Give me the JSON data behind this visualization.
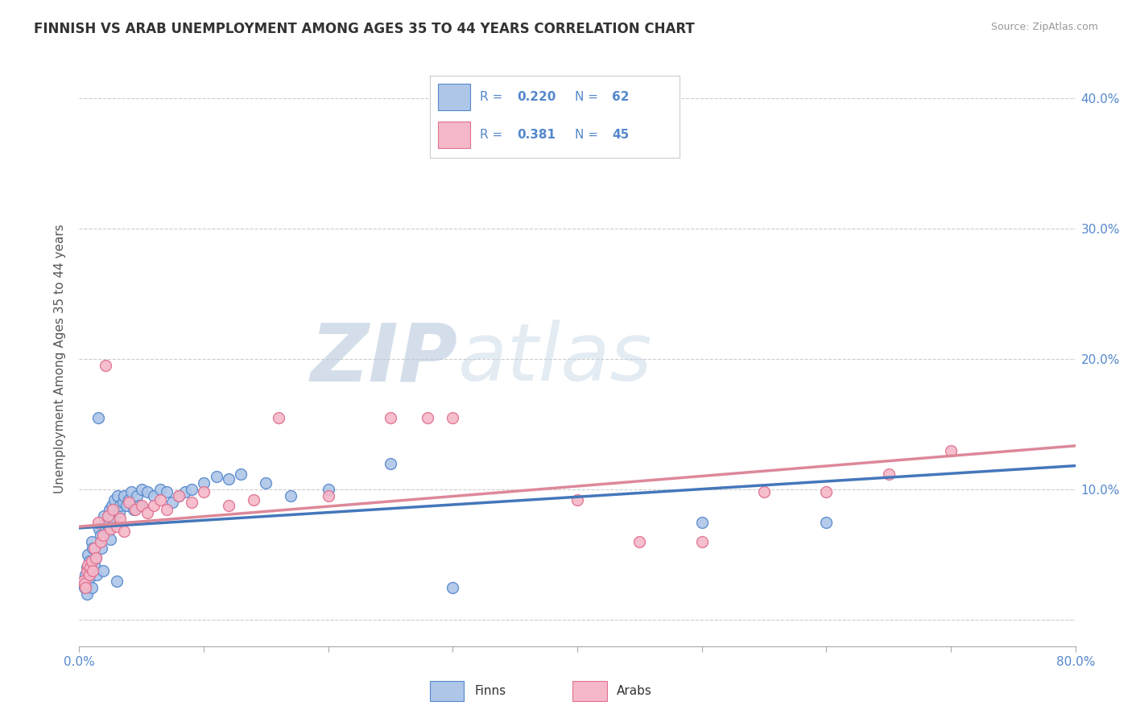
{
  "title": "FINNISH VS ARAB UNEMPLOYMENT AMONG AGES 35 TO 44 YEARS CORRELATION CHART",
  "source": "Source: ZipAtlas.com",
  "ylabel": "Unemployment Among Ages 35 to 44 years",
  "xlim": [
    0.0,
    0.8
  ],
  "ylim": [
    -0.02,
    0.42
  ],
  "xticks": [
    0.0,
    0.1,
    0.2,
    0.3,
    0.4,
    0.5,
    0.6,
    0.7,
    0.8
  ],
  "xtick_labels": [
    "0.0%",
    "",
    "",
    "",
    "",
    "",
    "",
    "",
    "80.0%"
  ],
  "yticks": [
    0.0,
    0.1,
    0.2,
    0.3,
    0.4
  ],
  "ytick_labels_right": [
    "",
    "10.0%",
    "20.0%",
    "30.0%",
    "40.0%"
  ],
  "finns_color": "#aec6e8",
  "arabs_color": "#f5b8c8",
  "finns_edge_color": "#5588cc",
  "arabs_edge_color": "#e07090",
  "trend_finns_color": "#4477bb",
  "trend_arabs_color": "#dd8899",
  "legend_R_finns": "0.220",
  "legend_N_finns": "62",
  "legend_R_arabs": "0.381",
  "legend_N_arabs": "45",
  "watermark": "ZIPatlas",
  "watermark_color": "#d0d8e8",
  "background_color": "#ffffff",
  "grid_color": "#cccccc",
  "tick_color": "#5588cc",
  "finns_x": [
    0.003,
    0.004,
    0.005,
    0.006,
    0.006,
    0.007,
    0.007,
    0.008,
    0.008,
    0.009,
    0.01,
    0.01,
    0.011,
    0.012,
    0.013,
    0.014,
    0.015,
    0.016,
    0.017,
    0.018,
    0.019,
    0.02,
    0.021,
    0.022,
    0.023,
    0.024,
    0.025,
    0.026,
    0.027,
    0.028,
    0.03,
    0.031,
    0.032,
    0.033,
    0.035,
    0.036,
    0.038,
    0.04,
    0.042,
    0.044,
    0.046,
    0.048,
    0.05,
    0.055,
    0.06,
    0.065,
    0.07,
    0.075,
    0.08,
    0.085,
    0.09,
    0.1,
    0.11,
    0.12,
    0.13,
    0.15,
    0.17,
    0.2,
    0.25,
    0.3,
    0.5,
    0.6
  ],
  "finns_y": [
    0.03,
    0.025,
    0.035,
    0.02,
    0.04,
    0.028,
    0.05,
    0.032,
    0.045,
    0.038,
    0.06,
    0.025,
    0.055,
    0.042,
    0.048,
    0.035,
    0.155,
    0.07,
    0.065,
    0.055,
    0.038,
    0.08,
    0.072,
    0.075,
    0.068,
    0.085,
    0.062,
    0.088,
    0.078,
    0.092,
    0.03,
    0.095,
    0.082,
    0.088,
    0.09,
    0.095,
    0.088,
    0.092,
    0.098,
    0.085,
    0.095,
    0.088,
    0.1,
    0.098,
    0.095,
    0.1,
    0.098,
    0.09,
    0.095,
    0.098,
    0.1,
    0.105,
    0.11,
    0.108,
    0.112,
    0.105,
    0.095,
    0.1,
    0.12,
    0.025,
    0.075,
    0.075
  ],
  "arabs_x": [
    0.003,
    0.004,
    0.005,
    0.006,
    0.007,
    0.008,
    0.009,
    0.01,
    0.011,
    0.012,
    0.013,
    0.015,
    0.017,
    0.019,
    0.021,
    0.023,
    0.025,
    0.027,
    0.03,
    0.033,
    0.036,
    0.04,
    0.045,
    0.05,
    0.055,
    0.06,
    0.065,
    0.07,
    0.08,
    0.09,
    0.1,
    0.12,
    0.14,
    0.16,
    0.2,
    0.25,
    0.28,
    0.3,
    0.4,
    0.45,
    0.5,
    0.55,
    0.6,
    0.65,
    0.7
  ],
  "arabs_y": [
    0.03,
    0.028,
    0.025,
    0.038,
    0.042,
    0.035,
    0.04,
    0.045,
    0.038,
    0.055,
    0.048,
    0.075,
    0.06,
    0.065,
    0.195,
    0.08,
    0.07,
    0.085,
    0.072,
    0.078,
    0.068,
    0.09,
    0.085,
    0.088,
    0.082,
    0.088,
    0.092,
    0.085,
    0.095,
    0.09,
    0.098,
    0.088,
    0.092,
    0.155,
    0.095,
    0.155,
    0.155,
    0.155,
    0.092,
    0.06,
    0.06,
    0.098,
    0.098,
    0.112,
    0.13
  ]
}
